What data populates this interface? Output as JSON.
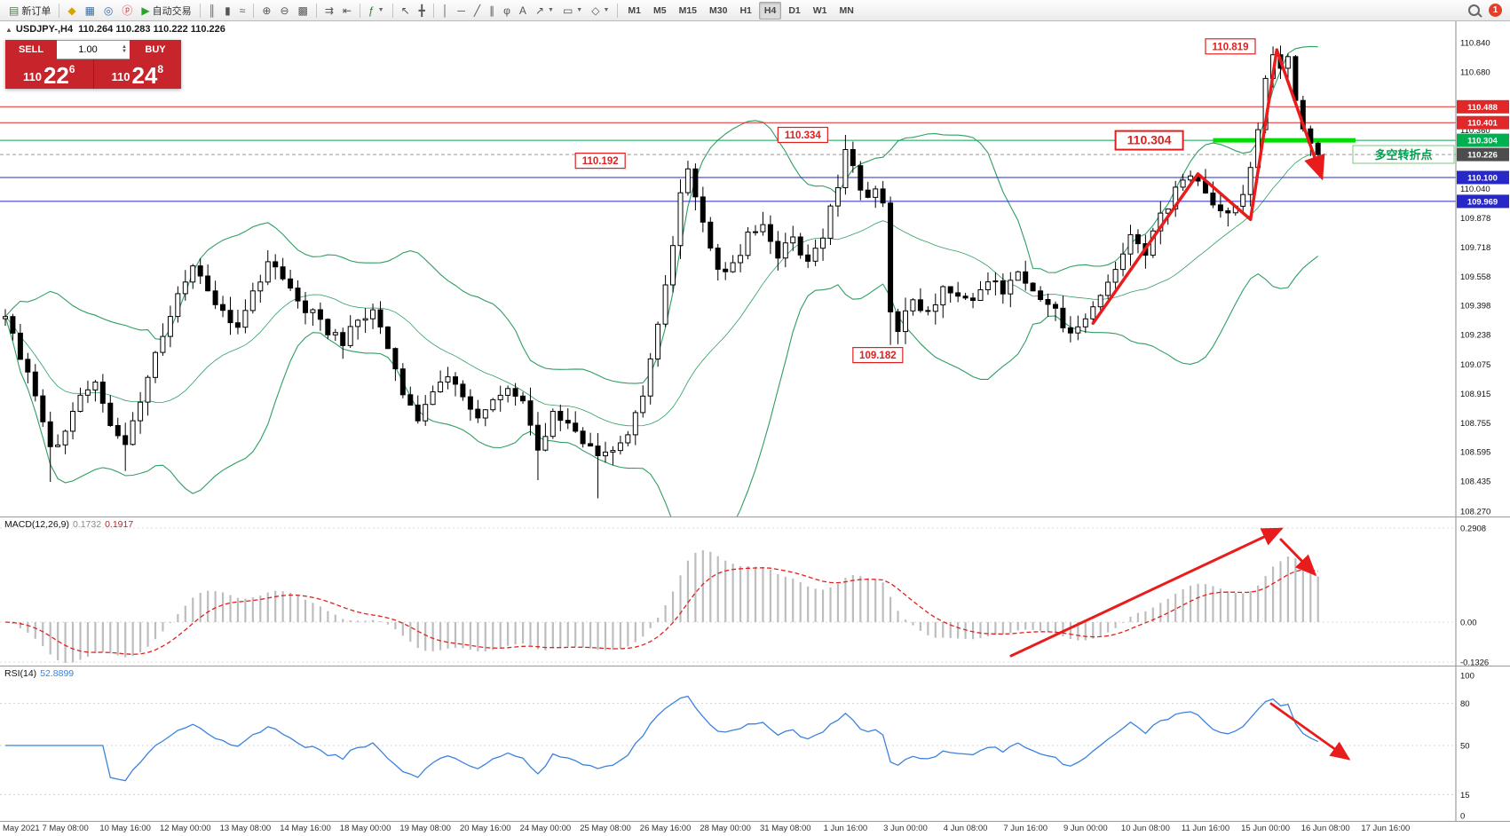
{
  "titlebar": {
    "badge_count": "1"
  },
  "toolbar": {
    "items": [
      {
        "type": "button",
        "name": "new-order-button",
        "glyph": "▤",
        "glyph_color": "#4a7d4a",
        "label": "新订单"
      },
      {
        "type": "sep"
      },
      {
        "type": "button",
        "name": "marketwatch-icon",
        "glyph": "◆",
        "glyph_color": "#d8a400"
      },
      {
        "type": "button",
        "name": "data-window-icon",
        "glyph": "▦",
        "glyph_color": "#3a6ea5"
      },
      {
        "type": "button",
        "name": "navigator-icon",
        "glyph": "◎",
        "glyph_color": "#3a6ea5"
      },
      {
        "type": "button",
        "name": "community-icon",
        "glyph": "ⓟ",
        "glyph_color": "#c03a3a"
      },
      {
        "type": "button",
        "name": "autotrading-button",
        "glyph": "▶",
        "glyph_color": "#28a428",
        "label": "自动交易"
      },
      {
        "type": "sep"
      },
      {
        "type": "button",
        "name": "bar-chart-icon",
        "glyph": "║"
      },
      {
        "type": "button",
        "name": "candlestick-chart-icon",
        "glyph": "▮"
      },
      {
        "type": "button",
        "name": "line-chart-icon",
        "glyph": "≈"
      },
      {
        "type": "sep"
      },
      {
        "type": "button",
        "name": "zoom-in-icon",
        "glyph": "⊕"
      },
      {
        "type": "button",
        "name": "zoom-out-icon",
        "glyph": "⊖"
      },
      {
        "type": "button",
        "name": "tile-windows-icon",
        "glyph": "▩"
      },
      {
        "type": "sep"
      },
      {
        "type": "button",
        "name": "auto-scroll-icon",
        "glyph": "⇉"
      },
      {
        "type": "button",
        "name": "chart-shift-icon",
        "glyph": "⇤"
      },
      {
        "type": "sep"
      },
      {
        "type": "button",
        "name": "indicators-icon",
        "glyph": "ƒ",
        "glyph_color": "#2e7d32",
        "dropdown": true
      },
      {
        "type": "sep"
      },
      {
        "type": "button",
        "name": "cursor-icon",
        "glyph": "↖"
      },
      {
        "type": "button",
        "name": "crosshair-icon",
        "glyph": "╋"
      },
      {
        "type": "sep"
      },
      {
        "type": "button",
        "name": "vertical-line-icon",
        "glyph": "│"
      },
      {
        "type": "button",
        "name": "horizontal-line-icon",
        "glyph": "─"
      },
      {
        "type": "button",
        "name": "trendline-icon",
        "glyph": "╱"
      },
      {
        "type": "button",
        "name": "channel-icon",
        "glyph": "∥"
      },
      {
        "type": "button",
        "name": "fibonacci-icon",
        "glyph": "φ"
      },
      {
        "type": "button",
        "name": "text-icon",
        "glyph": "A"
      },
      {
        "type": "button",
        "name": "arrow-tool-icon",
        "glyph": "↗",
        "dropdown": true
      },
      {
        "type": "button",
        "name": "shapes-icon",
        "glyph": "▭",
        "dropdown": true
      },
      {
        "type": "button",
        "name": "cycle-lines-icon",
        "glyph": "◇",
        "dropdown": true
      },
      {
        "type": "sep"
      }
    ],
    "timeframes": [
      {
        "label": "M1"
      },
      {
        "label": "M5"
      },
      {
        "label": "M15"
      },
      {
        "label": "M30"
      },
      {
        "label": "H1"
      },
      {
        "label": "H4",
        "active": true
      },
      {
        "label": "D1"
      },
      {
        "label": "W1"
      },
      {
        "label": "MN"
      }
    ]
  },
  "chart": {
    "symbol_line": {
      "arrow": "▲",
      "symbol": "USDJPY-,H4",
      "ohlc": "110.264 110.283 110.222 110.226"
    }
  },
  "trade_panel": {
    "sell_label": "SELL",
    "buy_label": "BUY",
    "volume": "1.00",
    "sell_price": {
      "main": "110",
      "big": "22",
      "pips": "6"
    },
    "buy_price": {
      "main": "110",
      "big": "24",
      "pips": "8"
    }
  },
  "price_scale": {
    "ticks": [
      "110.840",
      "110.680",
      "110.360",
      "110.040",
      "109.878",
      "109.718",
      "109.558",
      "109.398",
      "109.238",
      "109.075",
      "108.915",
      "108.755",
      "108.595",
      "108.435",
      "108.270"
    ],
    "tick_prices": [
      110.84,
      110.68,
      110.36,
      110.04,
      109.878,
      109.718,
      109.558,
      109.398,
      109.238,
      109.075,
      108.915,
      108.755,
      108.595,
      108.435,
      108.27
    ],
    "tags": [
      {
        "value": "110.488",
        "price": 110.488,
        "color": "#e02828"
      },
      {
        "value": "110.401",
        "price": 110.401,
        "color": "#e02828"
      },
      {
        "value": "110.304",
        "price": 110.304,
        "color": "#00b050"
      },
      {
        "value": "110.226",
        "price": 110.226,
        "color": "#4d4d4d"
      },
      {
        "value": "110.100",
        "price": 110.1,
        "color": "#2828c8"
      },
      {
        "value": "109.969",
        "price": 109.969,
        "color": "#2828c8"
      }
    ]
  },
  "price_lines": [
    {
      "price": 110.488,
      "color": "#e02828",
      "style": "solid"
    },
    {
      "price": 110.401,
      "color": "#e02828",
      "style": "solid"
    },
    {
      "price": 110.304,
      "color": "#00a84e",
      "style": "solid"
    },
    {
      "price": 110.226,
      "color": "#9a9a9a",
      "style": "dash"
    },
    {
      "price": 110.1,
      "color": "#2828c8",
      "style": "solid"
    },
    {
      "price": 109.969,
      "color": "#2828c8",
      "style": "solid"
    }
  ],
  "flags": [
    {
      "text": "110.819",
      "price": 110.819,
      "bar": 160
    },
    {
      "text": "110.334",
      "price": 110.334,
      "bar": 103
    },
    {
      "text": "110.304",
      "price": 110.304,
      "bar": 148,
      "big": true
    },
    {
      "text": "110.192",
      "price": 110.192,
      "bar": 76
    },
    {
      "text": "109.182",
      "price": 109.182,
      "bar": 113,
      "below": true
    }
  ],
  "green_segment": {
    "price": 110.304,
    "bar1": 161,
    "bar2": 180
  },
  "annotations": {
    "turning_point": {
      "text": "多空转折点",
      "color": "#00a050"
    },
    "trend_arrows": {
      "main_path": [
        [
          145,
          109.3
        ],
        [
          159,
          110.12
        ],
        [
          166,
          109.87
        ],
        [
          169.5,
          110.8
        ]
      ],
      "main_final": [
        175.5,
        110.1
      ],
      "macd_up": [
        [
          1139,
          156
        ],
        [
          1443,
          13
        ]
      ],
      "macd_down": [
        [
          1443,
          25
        ],
        [
          1481,
          64
        ]
      ],
      "rsi_down": [
        [
          1432,
          42
        ],
        [
          1519,
          104
        ]
      ]
    }
  },
  "colors": {
    "bollinger": "#2f9e62",
    "macd_hist": "#bdbdbd",
    "macd_signal": "#e02020",
    "rsi_line": "#3c82dc",
    "arrow": "#e81c1c",
    "candle_up": "#ffffff",
    "candle_down": "#000000",
    "candle_border": "#000000",
    "thick_level": "#00dd00"
  },
  "chart_data": {
    "type": "candlestick",
    "symbol": "USDJPY-",
    "timeframe": "H4",
    "current_ohlc": {
      "open": "110.264",
      "high": "110.283",
      "low": "110.222",
      "close": "110.226"
    },
    "bars_total": 176,
    "price_range": [
      108.25,
      110.957
    ],
    "close_anchors": [
      [
        0,
        109.35
      ],
      [
        2,
        109.12
      ],
      [
        4,
        108.92
      ],
      [
        6,
        108.6
      ],
      [
        8,
        108.72
      ],
      [
        10,
        108.88
      ],
      [
        12,
        108.98
      ],
      [
        14,
        108.73
      ],
      [
        16,
        108.62
      ],
      [
        18,
        108.88
      ],
      [
        20,
        109.12
      ],
      [
        23,
        109.45
      ],
      [
        25,
        109.6
      ],
      [
        27,
        109.5
      ],
      [
        29,
        109.35
      ],
      [
        31,
        109.28
      ],
      [
        33,
        109.48
      ],
      [
        35,
        109.62
      ],
      [
        37,
        109.55
      ],
      [
        39,
        109.42
      ],
      [
        41,
        109.35
      ],
      [
        43,
        109.26
      ],
      [
        45,
        109.2
      ],
      [
        47,
        109.32
      ],
      [
        49,
        109.38
      ],
      [
        51,
        109.15
      ],
      [
        53,
        108.9
      ],
      [
        55,
        108.78
      ],
      [
        57,
        108.92
      ],
      [
        59,
        109.02
      ],
      [
        61,
        108.88
      ],
      [
        63,
        108.78
      ],
      [
        65,
        108.9
      ],
      [
        67,
        108.95
      ],
      [
        69,
        108.85
      ],
      [
        71,
        108.58
      ],
      [
        73,
        108.8
      ],
      [
        75,
        108.75
      ],
      [
        77,
        108.65
      ],
      [
        79,
        108.56
      ],
      [
        81,
        108.62
      ],
      [
        83,
        108.7
      ],
      [
        85,
        108.92
      ],
      [
        87,
        109.28
      ],
      [
        89,
        109.72
      ],
      [
        90,
        110.0
      ],
      [
        91,
        110.15
      ],
      [
        92,
        110.02
      ],
      [
        93,
        109.85
      ],
      [
        94,
        109.7
      ],
      [
        95,
        109.58
      ],
      [
        97,
        109.62
      ],
      [
        99,
        109.78
      ],
      [
        101,
        109.85
      ],
      [
        103,
        109.68
      ],
      [
        105,
        109.76
      ],
      [
        107,
        109.64
      ],
      [
        109,
        109.78
      ],
      [
        110,
        109.92
      ],
      [
        111,
        110.05
      ],
      [
        112,
        110.28
      ],
      [
        113,
        110.15
      ],
      [
        114,
        110.05
      ],
      [
        115,
        109.98
      ],
      [
        116,
        110.02
      ],
      [
        117,
        109.95
      ],
      [
        118,
        109.35
      ],
      [
        119,
        109.28
      ],
      [
        121,
        109.42
      ],
      [
        123,
        109.35
      ],
      [
        125,
        109.5
      ],
      [
        127,
        109.44
      ],
      [
        129,
        109.4
      ],
      [
        131,
        109.55
      ],
      [
        133,
        109.47
      ],
      [
        135,
        109.56
      ],
      [
        137,
        109.48
      ],
      [
        139,
        109.42
      ],
      [
        141,
        109.3
      ],
      [
        142,
        109.22
      ],
      [
        144,
        109.32
      ],
      [
        146,
        109.45
      ],
      [
        148,
        109.6
      ],
      [
        150,
        109.76
      ],
      [
        152,
        109.7
      ],
      [
        154,
        109.88
      ],
      [
        156,
        110.02
      ],
      [
        158,
        110.1
      ],
      [
        160,
        110.02
      ],
      [
        161,
        109.95
      ],
      [
        163,
        109.88
      ],
      [
        165,
        110.02
      ],
      [
        166,
        110.15
      ],
      [
        167,
        110.38
      ],
      [
        168,
        110.62
      ],
      [
        169,
        110.75
      ],
      [
        170,
        110.68
      ],
      [
        171,
        110.76
      ],
      [
        172,
        110.55
      ],
      [
        173,
        110.35
      ],
      [
        174,
        110.28
      ],
      [
        175,
        110.226
      ]
    ],
    "wick_overrides": [
      {
        "bar": 6,
        "low": 108.43
      },
      {
        "bar": 16,
        "low": 108.49
      },
      {
        "bar": 71,
        "low": 108.44
      },
      {
        "bar": 79,
        "low": 108.34
      },
      {
        "bar": 91,
        "high": 110.192
      },
      {
        "bar": 112,
        "high": 110.334
      },
      {
        "bar": 118,
        "low": 109.182
      },
      {
        "bar": 169,
        "high": 110.819
      },
      {
        "bar": 171,
        "high": 110.78
      }
    ],
    "indicators": {
      "bollinger": {
        "period": 20,
        "deviation": 2
      },
      "macd": {
        "label": "MACD(12,26,9)",
        "values": [
          "0.1732",
          "0.1917"
        ],
        "scale_labels": [
          "0.2908",
          "0.00",
          "-0.1326"
        ],
        "scale_values": [
          0.2908,
          0.0,
          -0.1326
        ]
      },
      "rsi": {
        "label": "RSI(14)",
        "value": "52.8899",
        "scale_labels": [
          "100",
          "80",
          "50",
          "15",
          "0"
        ],
        "scale_values": [
          100,
          80,
          50,
          15,
          0
        ],
        "levels": [
          80,
          50,
          15
        ]
      }
    },
    "time_labels": [
      "May 2021",
      "7 May 08:00",
      "10 May 16:00",
      "12 May 00:00",
      "13 May 08:00",
      "14 May 16:00",
      "18 May 00:00",
      "19 May 08:00",
      "20 May 16:00",
      "24 May 00:00",
      "25 May 08:00",
      "26 May 16:00",
      "28 May 00:00",
      "31 May 08:00",
      "1 Jun 16:00",
      "3 Jun 00:00",
      "4 Jun 08:00",
      "7 Jun 16:00",
      "9 Jun 00:00",
      "10 Jun 08:00",
      "11 Jun 16:00",
      "15 Jun 00:00",
      "16 Jun 08:00",
      "17 Jun 16:00"
    ]
  }
}
